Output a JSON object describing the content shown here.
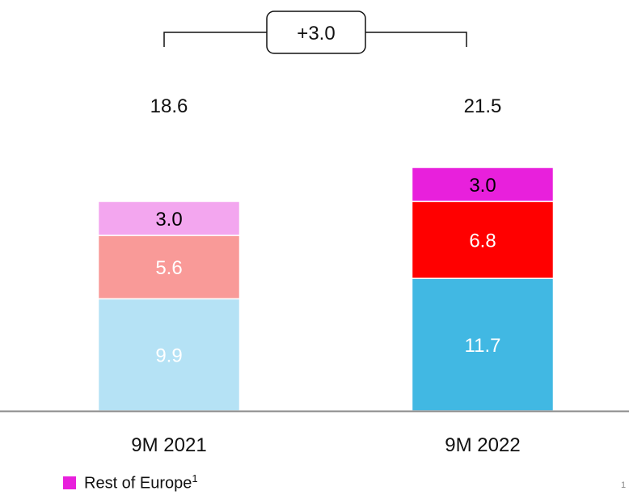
{
  "chart_data": {
    "type": "bar",
    "stacked": true,
    "categories": [
      "9M 2021",
      "9M 2022"
    ],
    "totals": [
      "18.6",
      "21.5"
    ],
    "series": [
      {
        "values": [
          9.9,
          11.7
        ],
        "labels": [
          "9.9",
          "11.7"
        ],
        "colors": [
          "#b5e2f5",
          "#41b8e3"
        ],
        "label_colors": [
          "#ffffff",
          "#ffffff"
        ]
      },
      {
        "values": [
          5.6,
          6.8
        ],
        "labels": [
          "5.6",
          "6.8"
        ],
        "colors": [
          "#f99a98",
          "#ff0000"
        ],
        "label_colors": [
          "#ffffff",
          "#ffffff"
        ]
      },
      {
        "name": "Rest of Europe",
        "values": [
          3.0,
          3.0
        ],
        "labels": [
          "3.0",
          "3.0"
        ],
        "colors": [
          "#f3a6ef",
          "#e820dc"
        ],
        "label_colors": [
          "#000000",
          "#000000"
        ]
      }
    ],
    "delta_label": "+3.0",
    "ylim": [
      0,
      24
    ]
  },
  "legend": {
    "label": "Rest of Europe",
    "superscript": "1",
    "color": "#e820dc"
  },
  "footnote_mark": "1"
}
